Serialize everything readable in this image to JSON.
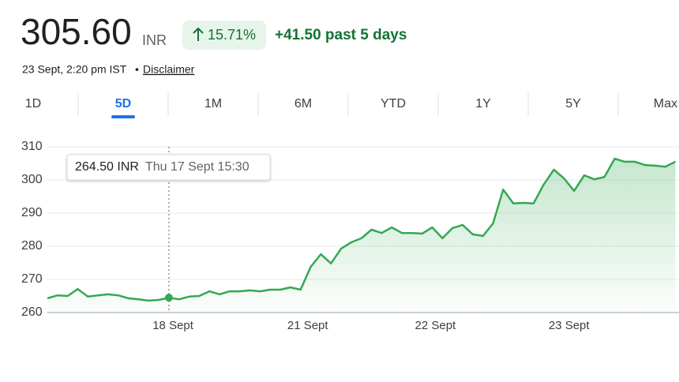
{
  "header": {
    "price": "305.60",
    "currency": "INR",
    "change_percent": "15.71%",
    "change": "+41.50 past 5 days",
    "timestamp": "23 Sept, 2:20 pm IST",
    "disclaimer": "Disclaimer"
  },
  "tabs": {
    "items": [
      "1D",
      "5D",
      "1M",
      "6M",
      "YTD",
      "1Y",
      "5Y",
      "Max"
    ],
    "active": 1
  },
  "chart_data": {
    "type": "line",
    "color": "#34a853",
    "grid": true,
    "values": [
      264.3,
      265.2,
      265,
      267.1,
      264.8,
      265.2,
      265.5,
      265.2,
      264.3,
      264,
      263.6,
      263.8,
      264.5,
      264,
      264.8,
      265,
      266.4,
      265.5,
      266.4,
      266.4,
      266.7,
      266.4,
      266.9,
      266.9,
      267.6,
      266.9,
      273.8,
      277.6,
      274.8,
      279.3,
      281.2,
      282.4,
      285,
      284,
      285.7,
      284,
      284,
      283.8,
      285.7,
      282.4,
      285.5,
      286.4,
      283.6,
      283.1,
      286.9,
      297.1,
      292.9,
      293.1,
      292.9,
      298.6,
      303.1,
      300.5,
      296.7,
      301.4,
      300.2,
      300.9,
      306.4,
      305.5,
      305.5,
      304.5,
      304.3,
      304,
      305.5
    ],
    "xlim": [
      0,
      62.2
    ],
    "xticks": [
      {
        "value": 12.4,
        "label": "18 Sept"
      },
      {
        "value": 25.7,
        "label": "21 Sept"
      },
      {
        "value": 38.3,
        "label": "22 Sept"
      },
      {
        "value": 51.5,
        "label": "23 Sept"
      }
    ],
    "ylim": [
      260,
      311.5
    ],
    "yticks": [
      260,
      270,
      280,
      290,
      300,
      310
    ],
    "tooltip": {
      "x": 12,
      "value": "264.50 INR",
      "time": "Thu 17 Sept 15:30"
    }
  }
}
